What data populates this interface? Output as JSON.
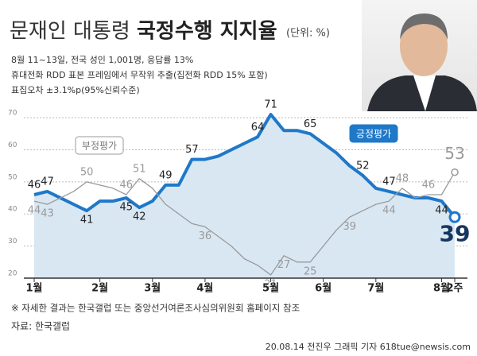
{
  "chart_data": {
    "type": "line",
    "title": "문재인 대통령",
    "title_bold": "국정수행 지지율",
    "unit": "(단위: %)",
    "notes": [
      "8월 11~13일, 전국 성인 1,001명, 응답률 13%",
      "휴대전화 RDD 표본 프레임에서 무작위 추출(집전화 RDD 15% 포함)",
      "표집오차 ±3.1%p(95%신뢰수준)"
    ],
    "footnote": "※ 자세한 결과는 한국갤럽 또는 중앙선거여론조사심의위원회 홈페이지 참조",
    "source": "자료: 한국갤럽",
    "credit": "20.08.14 전진우 그래픽 기자 618tue@newsis.com",
    "categories": [
      "1월",
      null,
      null,
      null,
      null,
      "2월",
      null,
      null,
      null,
      "3월",
      null,
      null,
      null,
      "4월",
      null,
      null,
      null,
      null,
      "5월",
      null,
      null,
      null,
      "6월",
      null,
      null,
      null,
      "7월",
      null,
      null,
      null,
      null,
      "8월",
      "2주"
    ],
    "ylim": [
      20,
      72
    ],
    "yticks": [
      20,
      30,
      40,
      50,
      60,
      70
    ],
    "grid": true,
    "series": [
      {
        "name": "긍정평가",
        "color": "#1f78c8",
        "area_color": "#d9e7f3",
        "values": [
          46,
          47,
          45,
          43,
          41,
          44,
          44,
          45,
          42,
          44,
          49,
          49,
          57,
          57,
          58,
          60,
          62,
          64,
          71,
          66,
          66,
          65,
          62,
          59,
          55,
          52,
          48,
          47,
          46,
          45,
          45,
          44,
          39
        ],
        "value_labels": [
          "46",
          "47",
          null,
          null,
          "41",
          null,
          null,
          "45",
          "42",
          null,
          "49",
          null,
          "57",
          null,
          null,
          null,
          null,
          "64",
          "71",
          null,
          null,
          "65",
          null,
          null,
          null,
          "52",
          null,
          "47",
          null,
          null,
          null,
          "44",
          "39"
        ]
      },
      {
        "name": "부정평가",
        "color": "#9a9a9a",
        "values": [
          44,
          43,
          45,
          47,
          50,
          49,
          48,
          46,
          51,
          48,
          43,
          40,
          37,
          36,
          33,
          30,
          26,
          24,
          21,
          27,
          25,
          25,
          30,
          35,
          39,
          41,
          43,
          44,
          48,
          45,
          46,
          46,
          53
        ],
        "value_labels": [
          "44",
          "43",
          null,
          null,
          "50",
          null,
          null,
          "46",
          "51",
          null,
          null,
          null,
          null,
          "36",
          null,
          null,
          null,
          null,
          "21",
          "27",
          null,
          "25",
          null,
          null,
          "39",
          null,
          null,
          "44",
          "48",
          null,
          "46",
          null,
          "53"
        ]
      }
    ]
  }
}
